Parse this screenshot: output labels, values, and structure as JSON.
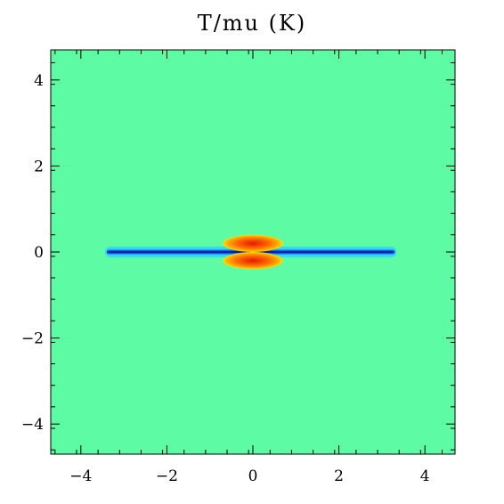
{
  "chart_data": {
    "type": "heatmap",
    "title": "T/mu (K)",
    "xlabel": "",
    "ylabel": "",
    "xlim": [
      -4.7,
      4.7
    ],
    "ylim": [
      -4.7,
      4.7
    ],
    "x_ticks": [
      -4,
      -2,
      0,
      2,
      4
    ],
    "y_ticks": [
      -4,
      -2,
      0,
      2,
      4
    ],
    "x_tick_labels": [
      "−4",
      "−2",
      "0",
      "2",
      "4"
    ],
    "y_tick_labels": [
      "−4",
      "−2",
      "0",
      "2",
      "4"
    ],
    "grid": false,
    "legend": "none",
    "colors": {
      "background": "#5dfca4",
      "disk_halo": "#2fd0ff",
      "disk_mid": "#0a60f0",
      "disk_core": "#0022a0",
      "bubble_edge": "#ffe000",
      "bubble_mid": "#ff8a00",
      "bubble_core": "#e21a00"
    },
    "features": [
      {
        "name": "thin cold disk",
        "x_range": [
          -3.4,
          3.3
        ],
        "y_center": 0.0,
        "half_thickness": 0.07,
        "level": "cold"
      },
      {
        "name": "hot bubble above midplane",
        "x_center": 0.0,
        "y_center": 0.2,
        "half_width": 0.7,
        "half_height": 0.2,
        "level": "hot"
      },
      {
        "name": "hot bubble below midplane",
        "x_center": 0.0,
        "y_center": -0.2,
        "half_width": 0.7,
        "half_height": 0.2,
        "level": "hot"
      }
    ]
  }
}
